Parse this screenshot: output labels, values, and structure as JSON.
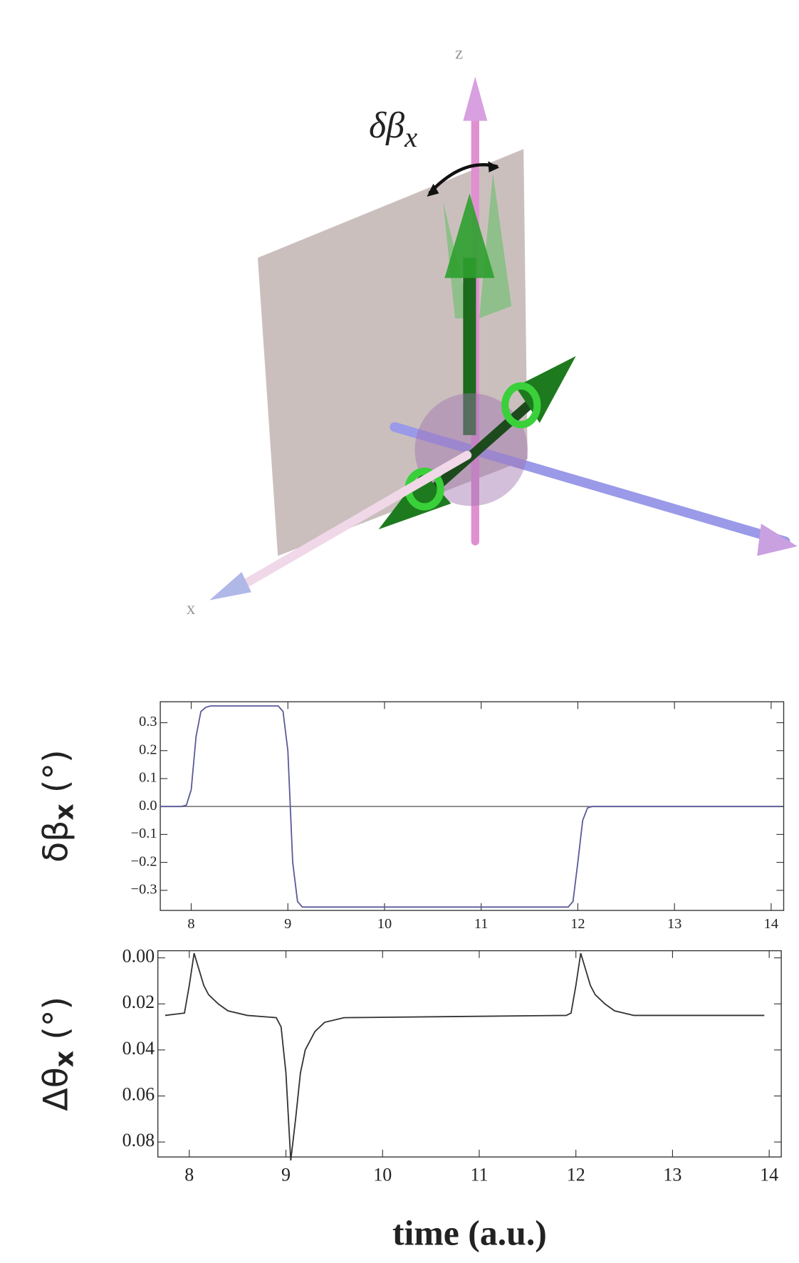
{
  "diagram": {
    "z_label": "z",
    "x_label": "x",
    "angle_label": {
      "main": "δβ",
      "sub": "x"
    }
  },
  "chart_data": [
    {
      "type": "line",
      "ylabel": {
        "main": "δβ",
        "sub": "x",
        "unit": " (°)"
      },
      "x": [
        7.68,
        7.9,
        7.95,
        8.0,
        8.05,
        8.1,
        8.15,
        8.2,
        8.9,
        8.95,
        9.0,
        9.05,
        9.1,
        9.15,
        11.9,
        11.95,
        12.0,
        12.05,
        12.1,
        12.15,
        14.1
      ],
      "series": [
        {
          "color": "#5a5a9a",
          "values": [
            0,
            0,
            0.005,
            0.06,
            0.25,
            0.34,
            0.355,
            0.36,
            0.36,
            0.34,
            0.2,
            -0.2,
            -0.34,
            -0.36,
            -0.36,
            -0.34,
            -0.2,
            -0.05,
            -0.005,
            0,
            0
          ]
        }
      ],
      "xlim": [
        7.68,
        14.13
      ],
      "ylim": [
        -0.372,
        0.375
      ],
      "xticks": [
        8,
        9,
        10,
        11,
        12,
        13,
        14
      ],
      "yticks": [
        0.3,
        0.2,
        0.1,
        {
          "value": 0,
          "label": "0.0"
        },
        {
          "value": -0.1,
          "label": "−0.1"
        },
        {
          "value": -0.2,
          "label": "−0.2"
        },
        {
          "value": -0.3,
          "label": "−0.3"
        }
      ],
      "zero_line": true
    },
    {
      "type": "line",
      "ylabel": {
        "main": "Δθ",
        "sub": "x",
        "unit": " (°)"
      },
      "xlabel": "time (a.u.)",
      "x": [
        7.75,
        7.95,
        8.0,
        8.05,
        8.1,
        8.15,
        8.2,
        8.3,
        8.4,
        8.6,
        8.9,
        8.95,
        9.0,
        9.05,
        9.1,
        9.15,
        9.2,
        9.3,
        9.4,
        9.6,
        11.9,
        11.95,
        12.0,
        12.05,
        12.1,
        12.15,
        12.2,
        12.3,
        12.4,
        12.6,
        13.95
      ],
      "series": [
        {
          "color": "#333333",
          "values": [
            0.025,
            0.024,
            0.012,
            -0.002,
            0.005,
            0.012,
            0.016,
            0.02,
            0.023,
            0.025,
            0.026,
            0.03,
            0.05,
            0.088,
            0.07,
            0.05,
            0.04,
            0.032,
            0.028,
            0.026,
            0.025,
            0.024,
            0.012,
            -0.002,
            0.005,
            0.012,
            0.016,
            0.02,
            0.023,
            0.025,
            0.025
          ]
        }
      ],
      "xlim": [
        7.675,
        14.125
      ],
      "ylim": [
        0.0865,
        -0.0031
      ],
      "xticks": [
        8,
        9,
        10,
        11,
        12,
        13,
        14
      ],
      "yticks": [
        {
          "value": 0,
          "label": "0.00"
        },
        0.02,
        0.04,
        0.06,
        0.08
      ],
      "zero_line": false
    }
  ]
}
